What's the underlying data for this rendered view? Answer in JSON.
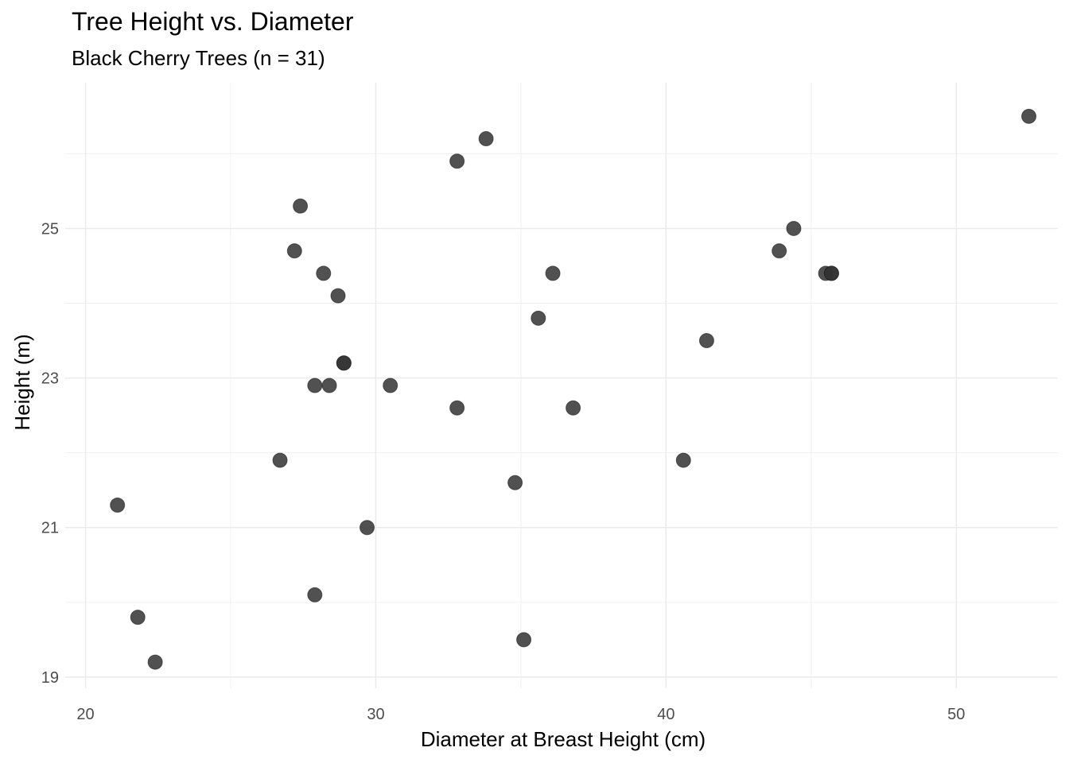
{
  "chart_data": {
    "type": "scatter",
    "title": "Tree Height vs. Diameter",
    "subtitle": "Black Cherry Trees (n = 31)",
    "xlabel": "Diameter at Breast Height (cm)",
    "ylabel": "Height (m)",
    "xlim": [
      19.3,
      53.5
    ],
    "ylim": [
      18.85,
      26.95
    ],
    "x_ticks": [
      20,
      30,
      40,
      50
    ],
    "y_ticks": [
      19,
      21,
      23,
      25
    ],
    "grid": true,
    "point_color": "#333333",
    "point_opacity": 0.85,
    "x": [
      21.1,
      21.8,
      22.4,
      26.7,
      27.2,
      27.4,
      27.9,
      27.9,
      28.2,
      28.4,
      28.7,
      28.9,
      28.9,
      29.7,
      30.5,
      32.8,
      32.8,
      33.8,
      34.8,
      35.1,
      35.6,
      36.1,
      36.8,
      40.6,
      41.4,
      43.9,
      44.4,
      45.5,
      45.7,
      45.7,
      52.5
    ],
    "y": [
      21.3,
      19.8,
      19.2,
      21.9,
      24.7,
      25.3,
      22.9,
      20.1,
      24.4,
      22.9,
      24.1,
      23.2,
      23.2,
      21.0,
      22.9,
      22.6,
      25.9,
      26.2,
      21.6,
      19.5,
      23.8,
      24.4,
      22.6,
      21.9,
      23.5,
      24.7,
      25.0,
      24.4,
      24.4,
      24.4,
      26.5
    ]
  }
}
